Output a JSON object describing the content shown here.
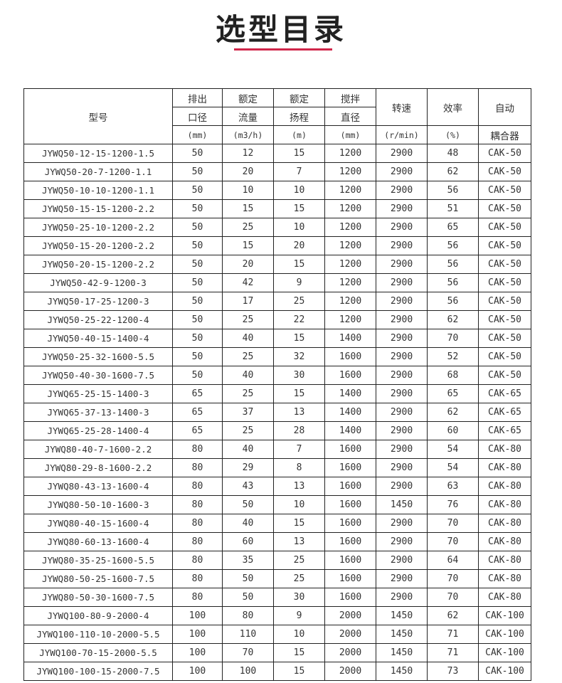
{
  "title": "选型目录",
  "colors": {
    "accent": "#d0264a"
  },
  "header": {
    "model": "型号",
    "outlet": [
      "排出",
      "口径",
      "(mm)"
    ],
    "flow": [
      "额定",
      "流量",
      "(m3/h)"
    ],
    "head": [
      "额定",
      "扬程",
      "(m)"
    ],
    "stir": [
      "搅拌",
      "直径",
      "(mm)"
    ],
    "speed": [
      "转速",
      "(r/min)"
    ],
    "eff": [
      "效率",
      "(%)"
    ],
    "coupler": [
      "自动",
      "耦合器"
    ]
  },
  "rows": [
    [
      "JYWQ50-12-15-1200-1.5",
      "50",
      "12",
      "15",
      "1200",
      "2900",
      "48",
      "CAK-50"
    ],
    [
      "JYWQ50-20-7-1200-1.1",
      "50",
      "20",
      "7",
      "1200",
      "2900",
      "62",
      "CAK-50"
    ],
    [
      "JYWQ50-10-10-1200-1.1",
      "50",
      "10",
      "10",
      "1200",
      "2900",
      "56",
      "CAK-50"
    ],
    [
      "JYWQ50-15-15-1200-2.2",
      "50",
      "15",
      "15",
      "1200",
      "2900",
      "51",
      "CAK-50"
    ],
    [
      "JYWQ50-25-10-1200-2.2",
      "50",
      "25",
      "10",
      "1200",
      "2900",
      "65",
      "CAK-50"
    ],
    [
      "JYWQ50-15-20-1200-2.2",
      "50",
      "15",
      "20",
      "1200",
      "2900",
      "56",
      "CAK-50"
    ],
    [
      "JYWQ50-20-15-1200-2.2",
      "50",
      "20",
      "15",
      "1200",
      "2900",
      "56",
      "CAK-50"
    ],
    [
      "JYWQ50-42-9-1200-3",
      "50",
      "42",
      "9",
      "1200",
      "2900",
      "56",
      "CAK-50"
    ],
    [
      "JYWQ50-17-25-1200-3",
      "50",
      "17",
      "25",
      "1200",
      "2900",
      "56",
      "CAK-50"
    ],
    [
      "JYWQ50-25-22-1200-4",
      "50",
      "25",
      "22",
      "1200",
      "2900",
      "62",
      "CAK-50"
    ],
    [
      "JYWQ50-40-15-1400-4",
      "50",
      "40",
      "15",
      "1400",
      "2900",
      "70",
      "CAK-50"
    ],
    [
      "JYWQ50-25-32-1600-5.5",
      "50",
      "25",
      "32",
      "1600",
      "2900",
      "52",
      "CAK-50"
    ],
    [
      "JYWQ50-40-30-1600-7.5",
      "50",
      "40",
      "30",
      "1600",
      "2900",
      "68",
      "CAK-50"
    ],
    [
      "JYWQ65-25-15-1400-3",
      "65",
      "25",
      "15",
      "1400",
      "2900",
      "65",
      "CAK-65"
    ],
    [
      "JYWQ65-37-13-1400-3",
      "65",
      "37",
      "13",
      "1400",
      "2900",
      "62",
      "CAK-65"
    ],
    [
      "JYWQ65-25-28-1400-4",
      "65",
      "25",
      "28",
      "1400",
      "2900",
      "60",
      "CAK-65"
    ],
    [
      "JYWQ80-40-7-1600-2.2",
      "80",
      "40",
      "7",
      "1600",
      "2900",
      "54",
      "CAK-80"
    ],
    [
      "JYWQ80-29-8-1600-2.2",
      "80",
      "29",
      "8",
      "1600",
      "2900",
      "54",
      "CAK-80"
    ],
    [
      "JYWQ80-43-13-1600-4",
      "80",
      "43",
      "13",
      "1600",
      "2900",
      "63",
      "CAK-80"
    ],
    [
      "JYWQ80-50-10-1600-3",
      "80",
      "50",
      "10",
      "1600",
      "1450",
      "76",
      "CAK-80"
    ],
    [
      "JYWQ80-40-15-1600-4",
      "80",
      "40",
      "15",
      "1600",
      "2900",
      "70",
      "CAK-80"
    ],
    [
      "JYWQ80-60-13-1600-4",
      "80",
      "60",
      "13",
      "1600",
      "2900",
      "70",
      "CAK-80"
    ],
    [
      "JYWQ80-35-25-1600-5.5",
      "80",
      "35",
      "25",
      "1600",
      "2900",
      "64",
      "CAK-80"
    ],
    [
      "JYWQ80-50-25-1600-7.5",
      "80",
      "50",
      "25",
      "1600",
      "2900",
      "70",
      "CAK-80"
    ],
    [
      "JYWQ80-50-30-1600-7.5",
      "80",
      "50",
      "30",
      "1600",
      "2900",
      "70",
      "CAK-80"
    ],
    [
      "JYWQ100-80-9-2000-4",
      "100",
      "80",
      "9",
      "2000",
      "1450",
      "62",
      "CAK-100"
    ],
    [
      "JYWQ100-110-10-2000-5.5",
      "100",
      "110",
      "10",
      "2000",
      "1450",
      "71",
      "CAK-100"
    ],
    [
      "JYWQ100-70-15-2000-5.5",
      "100",
      "70",
      "15",
      "2000",
      "1450",
      "71",
      "CAK-100"
    ],
    [
      "JYWQ100-100-15-2000-7.5",
      "100",
      "100",
      "15",
      "2000",
      "1450",
      "73",
      "CAK-100"
    ]
  ]
}
